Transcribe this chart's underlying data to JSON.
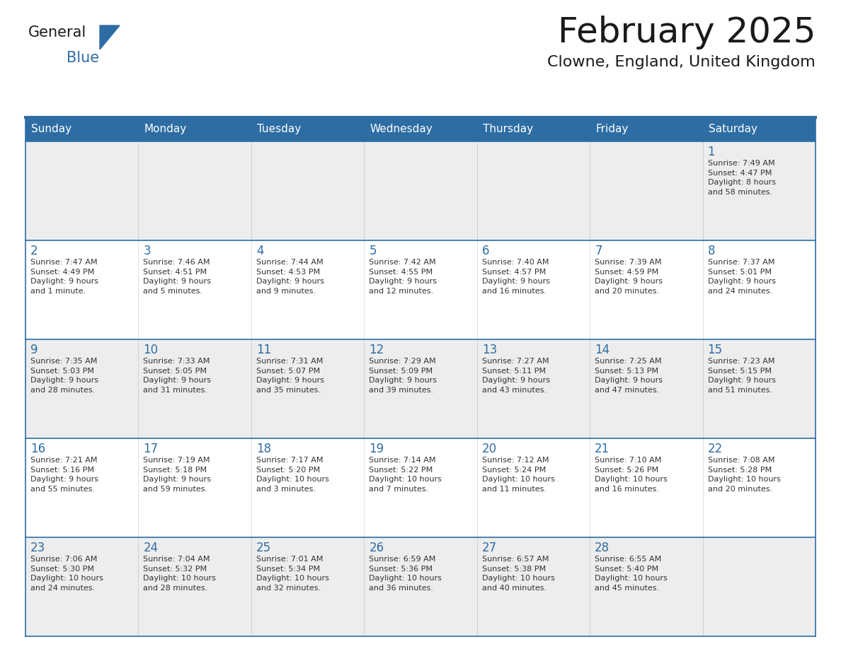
{
  "title": "February 2025",
  "subtitle": "Clowne, England, United Kingdom",
  "header_bg": "#2E6DA4",
  "header_text": "#FFFFFF",
  "row_bg": [
    "#EDEDED",
    "#FFFFFF",
    "#EDEDED",
    "#FFFFFF",
    "#EDEDED"
  ],
  "border_color": "#2E6DA4",
  "day_names": [
    "Sunday",
    "Monday",
    "Tuesday",
    "Wednesday",
    "Thursday",
    "Friday",
    "Saturday"
  ],
  "title_color": "#1a1a1a",
  "subtitle_color": "#1a1a1a",
  "day_number_color": "#2E6DA4",
  "cell_text_color": "#333333",
  "logo_general_color": "#1a1a1a",
  "logo_blue_color": "#2E6DA4",
  "logo_triangle_color": "#2E6DA4",
  "weeks": [
    [
      {
        "day": "",
        "info": ""
      },
      {
        "day": "",
        "info": ""
      },
      {
        "day": "",
        "info": ""
      },
      {
        "day": "",
        "info": ""
      },
      {
        "day": "",
        "info": ""
      },
      {
        "day": "",
        "info": ""
      },
      {
        "day": "1",
        "info": "Sunrise: 7:49 AM\nSunset: 4:47 PM\nDaylight: 8 hours\nand 58 minutes."
      }
    ],
    [
      {
        "day": "2",
        "info": "Sunrise: 7:47 AM\nSunset: 4:49 PM\nDaylight: 9 hours\nand 1 minute."
      },
      {
        "day": "3",
        "info": "Sunrise: 7:46 AM\nSunset: 4:51 PM\nDaylight: 9 hours\nand 5 minutes."
      },
      {
        "day": "4",
        "info": "Sunrise: 7:44 AM\nSunset: 4:53 PM\nDaylight: 9 hours\nand 9 minutes."
      },
      {
        "day": "5",
        "info": "Sunrise: 7:42 AM\nSunset: 4:55 PM\nDaylight: 9 hours\nand 12 minutes."
      },
      {
        "day": "6",
        "info": "Sunrise: 7:40 AM\nSunset: 4:57 PM\nDaylight: 9 hours\nand 16 minutes."
      },
      {
        "day": "7",
        "info": "Sunrise: 7:39 AM\nSunset: 4:59 PM\nDaylight: 9 hours\nand 20 minutes."
      },
      {
        "day": "8",
        "info": "Sunrise: 7:37 AM\nSunset: 5:01 PM\nDaylight: 9 hours\nand 24 minutes."
      }
    ],
    [
      {
        "day": "9",
        "info": "Sunrise: 7:35 AM\nSunset: 5:03 PM\nDaylight: 9 hours\nand 28 minutes."
      },
      {
        "day": "10",
        "info": "Sunrise: 7:33 AM\nSunset: 5:05 PM\nDaylight: 9 hours\nand 31 minutes."
      },
      {
        "day": "11",
        "info": "Sunrise: 7:31 AM\nSunset: 5:07 PM\nDaylight: 9 hours\nand 35 minutes."
      },
      {
        "day": "12",
        "info": "Sunrise: 7:29 AM\nSunset: 5:09 PM\nDaylight: 9 hours\nand 39 minutes."
      },
      {
        "day": "13",
        "info": "Sunrise: 7:27 AM\nSunset: 5:11 PM\nDaylight: 9 hours\nand 43 minutes."
      },
      {
        "day": "14",
        "info": "Sunrise: 7:25 AM\nSunset: 5:13 PM\nDaylight: 9 hours\nand 47 minutes."
      },
      {
        "day": "15",
        "info": "Sunrise: 7:23 AM\nSunset: 5:15 PM\nDaylight: 9 hours\nand 51 minutes."
      }
    ],
    [
      {
        "day": "16",
        "info": "Sunrise: 7:21 AM\nSunset: 5:16 PM\nDaylight: 9 hours\nand 55 minutes."
      },
      {
        "day": "17",
        "info": "Sunrise: 7:19 AM\nSunset: 5:18 PM\nDaylight: 9 hours\nand 59 minutes."
      },
      {
        "day": "18",
        "info": "Sunrise: 7:17 AM\nSunset: 5:20 PM\nDaylight: 10 hours\nand 3 minutes."
      },
      {
        "day": "19",
        "info": "Sunrise: 7:14 AM\nSunset: 5:22 PM\nDaylight: 10 hours\nand 7 minutes."
      },
      {
        "day": "20",
        "info": "Sunrise: 7:12 AM\nSunset: 5:24 PM\nDaylight: 10 hours\nand 11 minutes."
      },
      {
        "day": "21",
        "info": "Sunrise: 7:10 AM\nSunset: 5:26 PM\nDaylight: 10 hours\nand 16 minutes."
      },
      {
        "day": "22",
        "info": "Sunrise: 7:08 AM\nSunset: 5:28 PM\nDaylight: 10 hours\nand 20 minutes."
      }
    ],
    [
      {
        "day": "23",
        "info": "Sunrise: 7:06 AM\nSunset: 5:30 PM\nDaylight: 10 hours\nand 24 minutes."
      },
      {
        "day": "24",
        "info": "Sunrise: 7:04 AM\nSunset: 5:32 PM\nDaylight: 10 hours\nand 28 minutes."
      },
      {
        "day": "25",
        "info": "Sunrise: 7:01 AM\nSunset: 5:34 PM\nDaylight: 10 hours\nand 32 minutes."
      },
      {
        "day": "26",
        "info": "Sunrise: 6:59 AM\nSunset: 5:36 PM\nDaylight: 10 hours\nand 36 minutes."
      },
      {
        "day": "27",
        "info": "Sunrise: 6:57 AM\nSunset: 5:38 PM\nDaylight: 10 hours\nand 40 minutes."
      },
      {
        "day": "28",
        "info": "Sunrise: 6:55 AM\nSunset: 5:40 PM\nDaylight: 10 hours\nand 45 minutes."
      },
      {
        "day": "",
        "info": ""
      }
    ]
  ]
}
